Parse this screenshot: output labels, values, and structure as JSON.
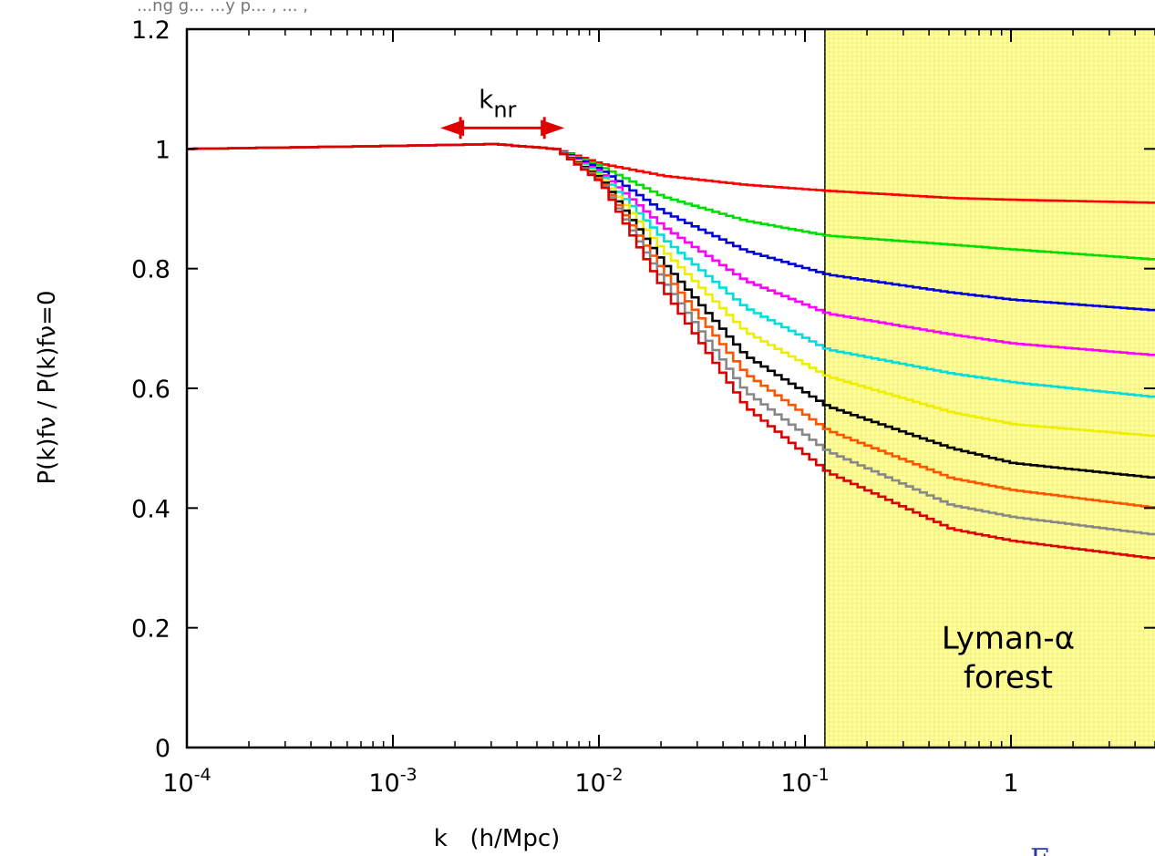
{
  "page": {
    "top_caption": "...ng g... ...y p... , ... ,",
    "corner_fragment": "F..."
  },
  "chart_data": {
    "type": "line",
    "title": "",
    "xlabel": "k   (h/Mpc)",
    "ylabel": "P(k)fν / P(k)fν=0",
    "x_scale": "log",
    "xlim": [
      0.0001,
      5
    ],
    "ylim": [
      0,
      1.2
    ],
    "x_ticks": [
      {
        "value": 0.0001,
        "base": "10",
        "exp": "-4"
      },
      {
        "value": 0.001,
        "base": "10",
        "exp": "-3"
      },
      {
        "value": 0.01,
        "base": "10",
        "exp": "-2"
      },
      {
        "value": 0.1,
        "base": "10",
        "exp": "-1"
      },
      {
        "value": 1,
        "base": "1",
        "exp": ""
      }
    ],
    "y_ticks": [
      {
        "value": 0,
        "label": "0"
      },
      {
        "value": 0.2,
        "label": "0.2"
      },
      {
        "value": 0.4,
        "label": "0.4"
      },
      {
        "value": 0.6,
        "label": "0.6"
      },
      {
        "value": 0.8,
        "label": "0.8"
      },
      {
        "value": 1,
        "label": "1"
      },
      {
        "value": 1.2,
        "label": "1.2"
      }
    ],
    "shaded_region": {
      "x_from": 0.125,
      "x_to": 5,
      "color": "#ffff99",
      "label_line1": "Lyman-α",
      "label_line2": "forest"
    },
    "annotation": {
      "label_base": "k",
      "label_sub": "nr",
      "x_from": 0.0017,
      "x_to": 0.0068,
      "y": 1.035,
      "color": "#e00000"
    },
    "series": [
      {
        "color": "#ff0000",
        "x": [
          0.0001,
          0.001,
          0.003,
          0.006,
          0.01,
          0.02,
          0.05,
          0.125,
          0.5,
          1,
          5
        ],
        "y": [
          1.0,
          1.005,
          1.008,
          1.0,
          0.975,
          0.955,
          0.94,
          0.93,
          0.918,
          0.915,
          0.91
        ]
      },
      {
        "color": "#00dd00",
        "x": [
          0.0001,
          0.001,
          0.003,
          0.006,
          0.01,
          0.02,
          0.05,
          0.125,
          0.5,
          1,
          5
        ],
        "y": [
          1.0,
          1.005,
          1.008,
          1.0,
          0.97,
          0.92,
          0.88,
          0.855,
          0.84,
          0.832,
          0.815
        ]
      },
      {
        "color": "#0000dd",
        "x": [
          0.0001,
          0.001,
          0.003,
          0.006,
          0.01,
          0.02,
          0.05,
          0.125,
          0.5,
          1,
          5
        ],
        "y": [
          1.0,
          1.005,
          1.008,
          1.0,
          0.965,
          0.895,
          0.83,
          0.79,
          0.76,
          0.748,
          0.73
        ]
      },
      {
        "color": "#ff00ff",
        "x": [
          0.0001,
          0.001,
          0.003,
          0.006,
          0.01,
          0.02,
          0.05,
          0.125,
          0.5,
          1,
          5
        ],
        "y": [
          1.0,
          1.005,
          1.008,
          1.0,
          0.96,
          0.87,
          0.78,
          0.725,
          0.69,
          0.675,
          0.655
        ]
      },
      {
        "color": "#00dddd",
        "x": [
          0.0001,
          0.001,
          0.003,
          0.006,
          0.01,
          0.02,
          0.05,
          0.125,
          0.5,
          1,
          5
        ],
        "y": [
          1.0,
          1.005,
          1.008,
          1.0,
          0.957,
          0.85,
          0.735,
          0.665,
          0.625,
          0.61,
          0.585
        ]
      },
      {
        "color": "#eeee00",
        "x": [
          0.0001,
          0.001,
          0.003,
          0.006,
          0.01,
          0.02,
          0.05,
          0.125,
          0.5,
          1,
          5
        ],
        "y": [
          1.0,
          1.005,
          1.008,
          1.0,
          0.953,
          0.83,
          0.695,
          0.62,
          0.56,
          0.54,
          0.52
        ]
      },
      {
        "color": "#000000",
        "x": [
          0.0001,
          0.001,
          0.003,
          0.006,
          0.01,
          0.02,
          0.05,
          0.125,
          0.5,
          1,
          5
        ],
        "y": [
          1.0,
          1.005,
          1.008,
          1.0,
          0.95,
          0.81,
          0.655,
          0.57,
          0.5,
          0.475,
          0.45
        ]
      },
      {
        "color": "#ff5500",
        "x": [
          0.0001,
          0.001,
          0.003,
          0.006,
          0.01,
          0.02,
          0.05,
          0.125,
          0.5,
          1,
          5
        ],
        "y": [
          1.0,
          1.005,
          1.008,
          1.0,
          0.947,
          0.795,
          0.625,
          0.53,
          0.45,
          0.43,
          0.4
        ]
      },
      {
        "color": "#888888",
        "x": [
          0.0001,
          0.001,
          0.003,
          0.006,
          0.01,
          0.02,
          0.05,
          0.125,
          0.5,
          1,
          5
        ],
        "y": [
          1.0,
          1.005,
          1.008,
          1.0,
          0.945,
          0.78,
          0.595,
          0.495,
          0.405,
          0.385,
          0.355
        ]
      },
      {
        "color": "#dd0000",
        "x": [
          0.0001,
          0.001,
          0.003,
          0.006,
          0.01,
          0.02,
          0.05,
          0.125,
          0.5,
          1,
          5
        ],
        "y": [
          1.0,
          1.005,
          1.008,
          1.0,
          0.943,
          0.765,
          0.57,
          0.46,
          0.365,
          0.345,
          0.315
        ]
      }
    ]
  }
}
